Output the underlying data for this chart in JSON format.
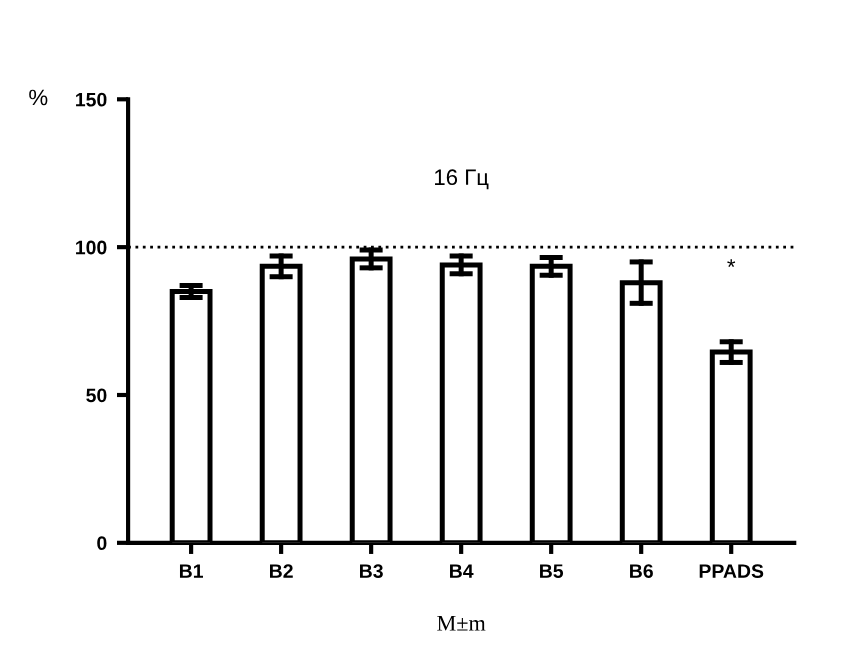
{
  "chart_data": {
    "type": "bar",
    "categories": [
      "B1",
      "B2",
      "B3",
      "B4",
      "B5",
      "B6",
      "PPADS"
    ],
    "values": [
      85,
      93.5,
      96,
      94,
      93.5,
      88,
      64.5
    ],
    "errors": [
      2,
      3.5,
      3,
      3,
      3,
      7,
      3.5
    ],
    "color": "#ffffff",
    "ylabel": "%",
    "xlabel": "M±m",
    "ylim": [
      0,
      150
    ],
    "yticks": [
      0,
      50,
      100,
      150
    ],
    "ref_lines": [
      {
        "axis": "y",
        "value": 100,
        "line_style": "dotted",
        "color": "#000000"
      }
    ],
    "annotations": [
      "16 Гц",
      "*"
    ],
    "grid": false,
    "legend": false
  }
}
